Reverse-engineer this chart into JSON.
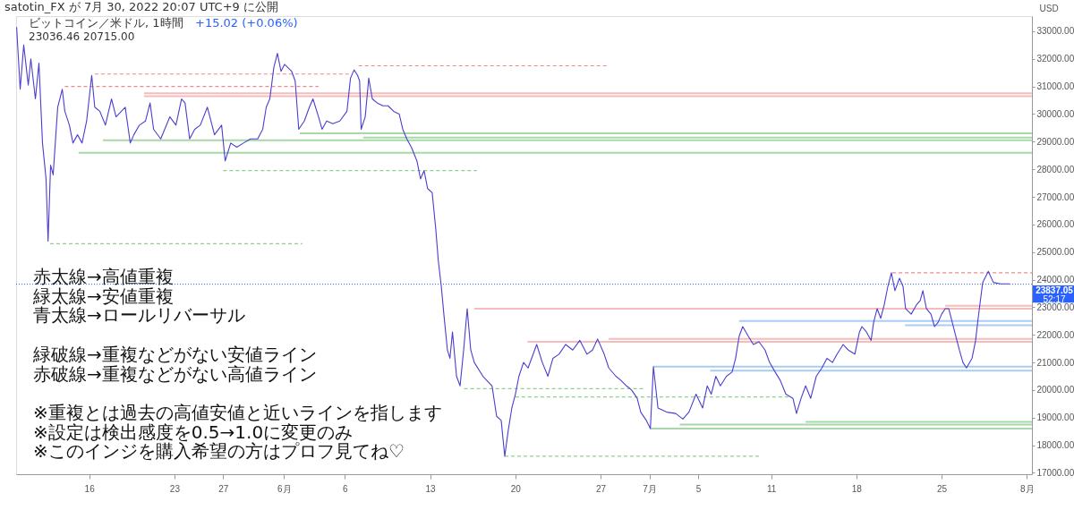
{
  "chart_data": {
    "type": "line",
    "title": "ビットコイン／米ドル, 1時間",
    "subtitle": "+15.02 (+0.06%)",
    "ylabel": "USD",
    "annotations": [
      "satotin_FX が 7月 30, 2022 20:07 UTC+9 に公開",
      "23036.46  20715.00",
      "赤太線→高値重複",
      "緑太線→安値重複",
      "青太線→ロールリバーサル",
      "緑破線→重複などがない安値ライン",
      "赤破線→重複などがない高値ライン",
      "※重複とは過去の高値安値と近いラインを指します",
      "※設定は検出感度を0.5→1.0に変更のみ",
      "※このインジを購入希望の方はプロフ見てね♡",
      "52:17"
    ],
    "x": [
      "2022-05-10T01:00",
      "2022-05-10T08:00",
      "2022-05-10T15:00",
      "2022-05-11T00:00",
      "2022-05-11T05:00",
      "2022-05-11T14:00",
      "2022-05-11T21:00",
      "2022-05-12T04:00",
      "2022-05-12T11:00",
      "2022-05-12T15:00",
      "2022-05-12T20:00",
      "2022-05-13T01:00",
      "2022-05-13T10:00",
      "2022-05-13T19:00",
      "2022-05-14T00:00",
      "2022-05-14T09:00",
      "2022-05-14T16:00",
      "2022-05-15T01:00",
      "2022-05-15T10:00",
      "2022-05-15T19:00",
      "2022-05-16T05:00",
      "2022-05-16T11:00",
      "2022-05-16T21:00",
      "2022-05-17T08:00",
      "2022-05-17T20:00",
      "2022-05-18T05:00",
      "2022-05-18T23:00",
      "2022-05-19T09:00",
      "2022-05-19T16:00",
      "2022-05-20T03:00",
      "2022-05-20T15:00",
      "2022-05-21T00:00",
      "2022-05-21T07:00",
      "2022-05-21T21:00",
      "2022-05-22T15:00",
      "2022-05-23T03:00",
      "2022-05-23T14:00",
      "2022-05-23T21:00",
      "2022-05-24T06:00",
      "2022-05-24T16:00",
      "2022-05-25T03:00",
      "2022-05-25T17:00",
      "2022-05-26T07:00",
      "2022-05-26T21:00",
      "2022-05-27T04:00",
      "2022-05-27T15:00",
      "2022-05-28T03:00",
      "2022-05-28T16:00",
      "2022-05-29T06:00",
      "2022-05-29T20:00",
      "2022-05-30T06:00",
      "2022-05-30T13:00",
      "2022-05-30T20:00",
      "2022-05-31T04:00",
      "2022-05-31T11:00",
      "2022-05-31T18:00",
      "2022-06-01T01:00",
      "2022-06-01T15:00",
      "2022-06-01T22:00",
      "2022-06-02T05:00",
      "2022-06-02T16:00",
      "2022-06-03T02:00",
      "2022-06-03T09:00",
      "2022-06-03T20:00",
      "2022-06-04T03:00",
      "2022-06-04T12:00",
      "2022-06-05T00:00",
      "2022-06-05T14:00",
      "2022-06-06T04:00",
      "2022-06-06T11:00",
      "2022-06-06T18:00",
      "2022-06-07T01:00",
      "2022-06-07T05:00",
      "2022-06-07T08:00",
      "2022-06-07T16:00",
      "2022-06-07T23:00",
      "2022-06-08T06:00",
      "2022-06-08T16:00",
      "2022-06-09T03:00",
      "2022-06-09T13:00",
      "2022-06-10T00:00",
      "2022-06-10T11:00",
      "2022-06-10T18:00",
      "2022-06-11T02:00",
      "2022-06-11T11:00",
      "2022-06-11T22:00",
      "2022-06-12T05:00",
      "2022-06-12T12:00",
      "2022-06-12T19:00",
      "2022-06-13T04:00",
      "2022-06-13T11:00",
      "2022-06-13T16:00",
      "2022-06-13T22:00",
      "2022-06-14T03:00",
      "2022-06-14T10:00",
      "2022-06-14T15:00",
      "2022-06-14T20:00",
      "2022-06-15T04:00",
      "2022-06-15T11:00",
      "2022-06-15T18:00",
      "2022-06-16T01:00",
      "2022-06-16T08:00",
      "2022-06-16T15:00",
      "2022-06-17T08:00",
      "2022-06-18T02:00",
      "2022-06-18T11:00",
      "2022-06-18T20:00",
      "2022-06-19T03:00",
      "2022-06-19T10:00",
      "2022-06-19T17:00",
      "2022-06-20T00:00",
      "2022-06-20T07:00",
      "2022-06-20T16:00",
      "2022-06-21T01:00",
      "2022-06-21T18:00",
      "2022-06-22T05:00",
      "2022-06-22T16:00",
      "2022-06-23T02:00",
      "2022-06-23T14:00",
      "2022-06-24T03:00",
      "2022-06-24T17:00",
      "2022-06-25T07:00",
      "2022-06-25T21:00",
      "2022-06-26T08:00",
      "2022-06-26T18:00",
      "2022-06-27T07:00",
      "2022-06-27T16:00",
      "2022-06-28T06:00",
      "2022-06-28T16:00",
      "2022-06-29T03:00",
      "2022-06-29T13:00",
      "2022-06-30T00:00",
      "2022-06-30T07:00",
      "2022-06-30T18:00",
      "2022-07-01T02:00",
      "2022-07-01T08:00",
      "2022-07-01T17:00",
      "2022-07-02T10:00",
      "2022-07-03T04:00",
      "2022-07-03T18:00",
      "2022-07-04T06:00",
      "2022-07-04T20:00",
      "2022-07-05T09:00",
      "2022-07-05T18:00",
      "2022-07-06T02:00",
      "2022-07-06T11:00",
      "2022-07-06T20:00",
      "2022-07-07T08:00",
      "2022-07-07T19:00",
      "2022-07-08T02:00",
      "2022-07-08T09:00",
      "2022-07-08T16:00",
      "2022-07-09T03:00",
      "2022-07-09T13:00",
      "2022-07-10T00:00",
      "2022-07-10T12:00",
      "2022-07-10T21:00",
      "2022-07-11T08:00",
      "2022-07-11T18:00",
      "2022-07-12T05:00",
      "2022-07-12T19:00",
      "2022-07-13T02:00",
      "2022-07-13T11:00",
      "2022-07-13T20:00",
      "2022-07-14T06:00",
      "2022-07-14T17:00",
      "2022-07-15T04:00",
      "2022-07-15T14:00",
      "2022-07-16T01:00",
      "2022-07-16T10:00",
      "2022-07-16T22:00",
      "2022-07-17T08:00",
      "2022-07-17T21:00",
      "2022-07-18T06:00",
      "2022-07-18T11:00",
      "2022-07-18T20:00",
      "2022-07-19T05:00",
      "2022-07-19T10:00",
      "2022-07-19T17:00",
      "2022-07-20T00:00",
      "2022-07-20T07:00",
      "2022-07-20T14:00",
      "2022-07-20T21:00",
      "2022-07-21T04:00",
      "2022-07-21T13:00",
      "2022-07-21T20:00",
      "2022-07-22T01:00",
      "2022-07-22T12:00",
      "2022-07-22T23:00",
      "2022-07-23T06:00",
      "2022-07-23T11:00",
      "2022-07-23T18:00",
      "2022-07-24T03:00",
      "2022-07-24T10:00",
      "2022-07-24T17:00",
      "2022-07-25T00:00",
      "2022-07-25T07:00",
      "2022-07-25T14:00",
      "2022-07-25T21:00",
      "2022-07-26T04:00",
      "2022-07-26T11:00",
      "2022-07-26T18:00",
      "2022-07-27T01:00",
      "2022-07-27T12:00",
      "2022-07-27T19:00",
      "2022-07-28T00:00",
      "2022-07-28T09:00",
      "2022-07-28T20:00",
      "2022-07-29T06:00",
      "2022-07-29T20:00",
      "2022-07-30T14:00"
    ],
    "series": [
      {
        "color": "#4a3fcf",
        "values": [
          33150,
          30900,
          32500,
          31050,
          32000,
          30550,
          31850,
          28950,
          27650,
          25400,
          28150,
          27800,
          30250,
          30900,
          30100,
          29600,
          28950,
          29250,
          28950,
          29750,
          31400,
          30250,
          30100,
          29600,
          30550,
          29900,
          30250,
          28950,
          29250,
          29600,
          29750,
          30400,
          29450,
          29100,
          29900,
          29600,
          30550,
          30400,
          29100,
          29450,
          29600,
          30250,
          29250,
          29600,
          28300,
          28950,
          28800,
          28950,
          29100,
          29100,
          29450,
          30250,
          30550,
          31700,
          32200,
          31550,
          31800,
          31550,
          31200,
          29450,
          29750,
          30250,
          30550,
          29900,
          29450,
          29750,
          29650,
          29750,
          30100,
          31300,
          31600,
          31400,
          31200,
          29450,
          29900,
          31300,
          30550,
          30400,
          30300,
          30300,
          30100,
          30000,
          29450,
          29100,
          28800,
          28300,
          27650,
          27950,
          27300,
          27150,
          25850,
          24700,
          23750,
          22750,
          21450,
          21150,
          22100,
          20500,
          20150,
          21450,
          22950,
          21450,
          21000,
          20500,
          20150,
          19050,
          18900,
          17600,
          18550,
          19350,
          19850,
          20500,
          21000,
          20800,
          21650,
          21000,
          20500,
          21150,
          21300,
          21650,
          21450,
          21800,
          21300,
          21450,
          21850,
          21300,
          20800,
          20500,
          20350,
          20150,
          20000,
          19700,
          19200,
          18900,
          18600,
          20850,
          19350,
          19200,
          19150,
          18950,
          19200,
          19850,
          19350,
          20150,
          19850,
          20500,
          20150,
          20500,
          20650,
          21150,
          21950,
          22300,
          21950,
          21650,
          21750,
          21450,
          21000,
          20650,
          20350,
          19850,
          19700,
          19150,
          19700,
          20150,
          19700,
          20500,
          20800,
          21150,
          21000,
          21300,
          21650,
          21450,
          21300,
          22100,
          22300,
          22100,
          21800,
          22450,
          22950,
          22600,
          23100,
          23750,
          24250,
          23600,
          24050,
          23750,
          22950,
          22750,
          23100,
          23250,
          23600,
          22950,
          22750,
          22300,
          22450,
          22750,
          22950,
          22950,
          22450,
          21950,
          21450,
          21000,
          20800,
          21150,
          21800,
          22600,
          23900,
          24300,
          23900,
          23850,
          23850
        ]
      },
      {
        "color": "#f08a8a",
        "line_style": "dashed",
        "x": [
          "2022-05-14T00:00",
          "2022-06-03T20:00"
        ],
        "values": [
          31000,
          31000
        ]
      },
      {
        "color": "#f08a8a",
        "line_style": "dashed",
        "x": [
          "2022-05-16T11:00",
          "2022-06-06T08:00"
        ],
        "values": [
          31450,
          31450
        ]
      },
      {
        "color": "#f08a8a",
        "line_style": "dashed",
        "x": [
          "2022-06-07T03:00",
          "2022-06-27T16:00"
        ],
        "values": [
          31750,
          31750
        ]
      },
      {
        "color": "#f08a8a",
        "line_style": "dashed",
        "x": [
          "2022-07-20T23:00",
          "2022-08-01T10:00"
        ],
        "values": [
          24250,
          24250
        ]
      },
      {
        "color": "#8fcf8f",
        "line_style": "dashed",
        "x": [
          "2022-05-27T00:00",
          "2022-06-16T20:00"
        ],
        "values": [
          27950,
          27950
        ]
      },
      {
        "color": "#8fcf8f",
        "line_style": "dashed",
        "x": [
          "2022-05-12T19:00",
          "2022-06-02T12:00"
        ],
        "values": [
          25300,
          25300
        ]
      },
      {
        "color": "#8fcf8f",
        "line_style": "dashed",
        "x": [
          "2022-06-15T19:00",
          "2022-06-30T12:00"
        ],
        "values": [
          20050,
          20050
        ]
      },
      {
        "color": "#8fcf8f",
        "line_style": "dashed",
        "x": [
          "2022-06-20T00:00",
          "2022-07-12T10:00"
        ],
        "values": [
          19750,
          19750
        ]
      },
      {
        "color": "#8fcf8f",
        "line_style": "dashed",
        "x": [
          "2022-06-19T03:00",
          "2022-07-10T00:00"
        ],
        "values": [
          17600,
          17600
        ]
      },
      {
        "color": "#f6bcbc",
        "line_style": "solid",
        "x": [
          "2022-05-20T12:00",
          "2022-08-01T10:00"
        ],
        "values": [
          30750,
          30750
        ]
      },
      {
        "color": "#f6bcbc",
        "line_style": "solid",
        "x": [
          "2022-05-20T12:00",
          "2022-08-01T10:00"
        ],
        "values": [
          30650,
          30650
        ]
      },
      {
        "color": "#f6bcbc",
        "line_style": "solid",
        "x": [
          "2022-06-16T15:00",
          "2022-08-01T10:00"
        ],
        "values": [
          22950,
          22950
        ]
      },
      {
        "color": "#f6bcbc",
        "line_style": "solid",
        "x": [
          "2022-07-25T07:00",
          "2022-08-01T10:00"
        ],
        "values": [
          23050,
          23050
        ]
      },
      {
        "color": "#f6bcbc",
        "line_style": "solid",
        "x": [
          "2022-06-21T00:00",
          "2022-08-01T10:00"
        ],
        "values": [
          21750,
          21750
        ]
      },
      {
        "color": "#f6bcbc",
        "line_style": "solid",
        "x": [
          "2022-06-27T16:00",
          "2022-08-01T10:00"
        ],
        "values": [
          21850,
          21850
        ]
      },
      {
        "color": "#a9cdf2",
        "line_style": "solid",
        "x": [
          "2022-07-08T09:00",
          "2022-08-01T10:00"
        ],
        "values": [
          22500,
          22500
        ]
      },
      {
        "color": "#a9cdf2",
        "line_style": "solid",
        "x": [
          "2022-07-22T00:00",
          "2022-08-01T10:00"
        ],
        "values": [
          22350,
          22350
        ]
      },
      {
        "color": "#a9cdf2",
        "line_style": "solid",
        "x": [
          "2022-07-01T08:00",
          "2022-08-01T10:00"
        ],
        "values": [
          20850,
          20850
        ]
      },
      {
        "color": "#a9cdf2",
        "line_style": "solid",
        "x": [
          "2022-07-06T00:00",
          "2022-08-01T10:00"
        ],
        "values": [
          20700,
          20700
        ]
      },
      {
        "color": "#a8d8a8",
        "line_style": "solid",
        "x": [
          "2022-06-02T07:00",
          "2022-08-01T10:00"
        ],
        "values": [
          29300,
          29300
        ]
      },
      {
        "color": "#a8d8a8",
        "line_style": "solid",
        "x": [
          "2022-06-07T12:00",
          "2022-08-01T10:00"
        ],
        "values": [
          29150,
          29150
        ]
      },
      {
        "color": "#a8d8a8",
        "line_style": "solid",
        "x": [
          "2022-05-17T03:00",
          "2022-08-01T10:00"
        ],
        "values": [
          29050,
          29050
        ]
      },
      {
        "color": "#a8d8a8",
        "line_style": "solid",
        "x": [
          "2022-05-15T03:00",
          "2022-08-01T10:00"
        ],
        "values": [
          28600,
          28600
        ]
      },
      {
        "color": "#a8d8a8",
        "line_style": "solid",
        "x": [
          "2022-07-13T20:00",
          "2022-08-01T10:00"
        ],
        "values": [
          18850,
          18850
        ]
      },
      {
        "color": "#a8d8a8",
        "line_style": "solid",
        "x": [
          "2022-07-03T12:00",
          "2022-08-01T10:00"
        ],
        "values": [
          18750,
          18750
        ]
      },
      {
        "color": "#a8d8a8",
        "line_style": "solid",
        "x": [
          "2022-07-01T02:00",
          "2022-08-01T10:00"
        ],
        "values": [
          18600,
          18600
        ]
      }
    ],
    "ref_lines": [
      {
        "axis": "y",
        "value": 23837.05,
        "label": "23837.05",
        "color": "#2962ff",
        "line_style": "dotted"
      }
    ],
    "xlim": [
      "2022-05-10T00:00",
      "2022-08-01T10:00"
    ],
    "xticks": [
      {
        "value": "2022-05-16",
        "label": "16"
      },
      {
        "value": "2022-05-23",
        "label": "23"
      },
      {
        "value": "2022-05-27",
        "label": "27"
      },
      {
        "value": "2022-06-01",
        "label": "6月"
      },
      {
        "value": "2022-06-06",
        "label": "6"
      },
      {
        "value": "2022-06-13",
        "label": "13"
      },
      {
        "value": "2022-06-20",
        "label": "20"
      },
      {
        "value": "2022-06-27",
        "label": "27"
      },
      {
        "value": "2022-07-01",
        "label": "7月"
      },
      {
        "value": "2022-07-05",
        "label": "5"
      },
      {
        "value": "2022-07-11",
        "label": "11"
      },
      {
        "value": "2022-07-18",
        "label": "18"
      },
      {
        "value": "2022-07-25",
        "label": "25"
      },
      {
        "value": "2022-08-01",
        "label": "8月"
      }
    ],
    "ylim": [
      16950,
      33550
    ],
    "yticks": [
      {
        "value": 17000,
        "label": "17000.00"
      },
      {
        "value": 18000,
        "label": "18000.00"
      },
      {
        "value": 19000,
        "label": "19000.00"
      },
      {
        "value": 20000,
        "label": "20000.00"
      },
      {
        "value": 21000,
        "label": "21000.00"
      },
      {
        "value": 22000,
        "label": "22000.00"
      },
      {
        "value": 23000,
        "label": "23000.00"
      },
      {
        "value": 24000,
        "label": "24000.00"
      },
      {
        "value": 25000,
        "label": "25000.00"
      },
      {
        "value": 26000,
        "label": "26000.00"
      },
      {
        "value": 27000,
        "label": "27000.00"
      },
      {
        "value": 28000,
        "label": "28000.00"
      },
      {
        "value": 29000,
        "label": "29000.00"
      },
      {
        "value": 30000,
        "label": "30000.00"
      },
      {
        "value": 31000,
        "label": "31000.00"
      },
      {
        "value": 32000,
        "label": "32000.00"
      },
      {
        "value": 33000,
        "label": "33000.00"
      }
    ],
    "grid": false
  }
}
